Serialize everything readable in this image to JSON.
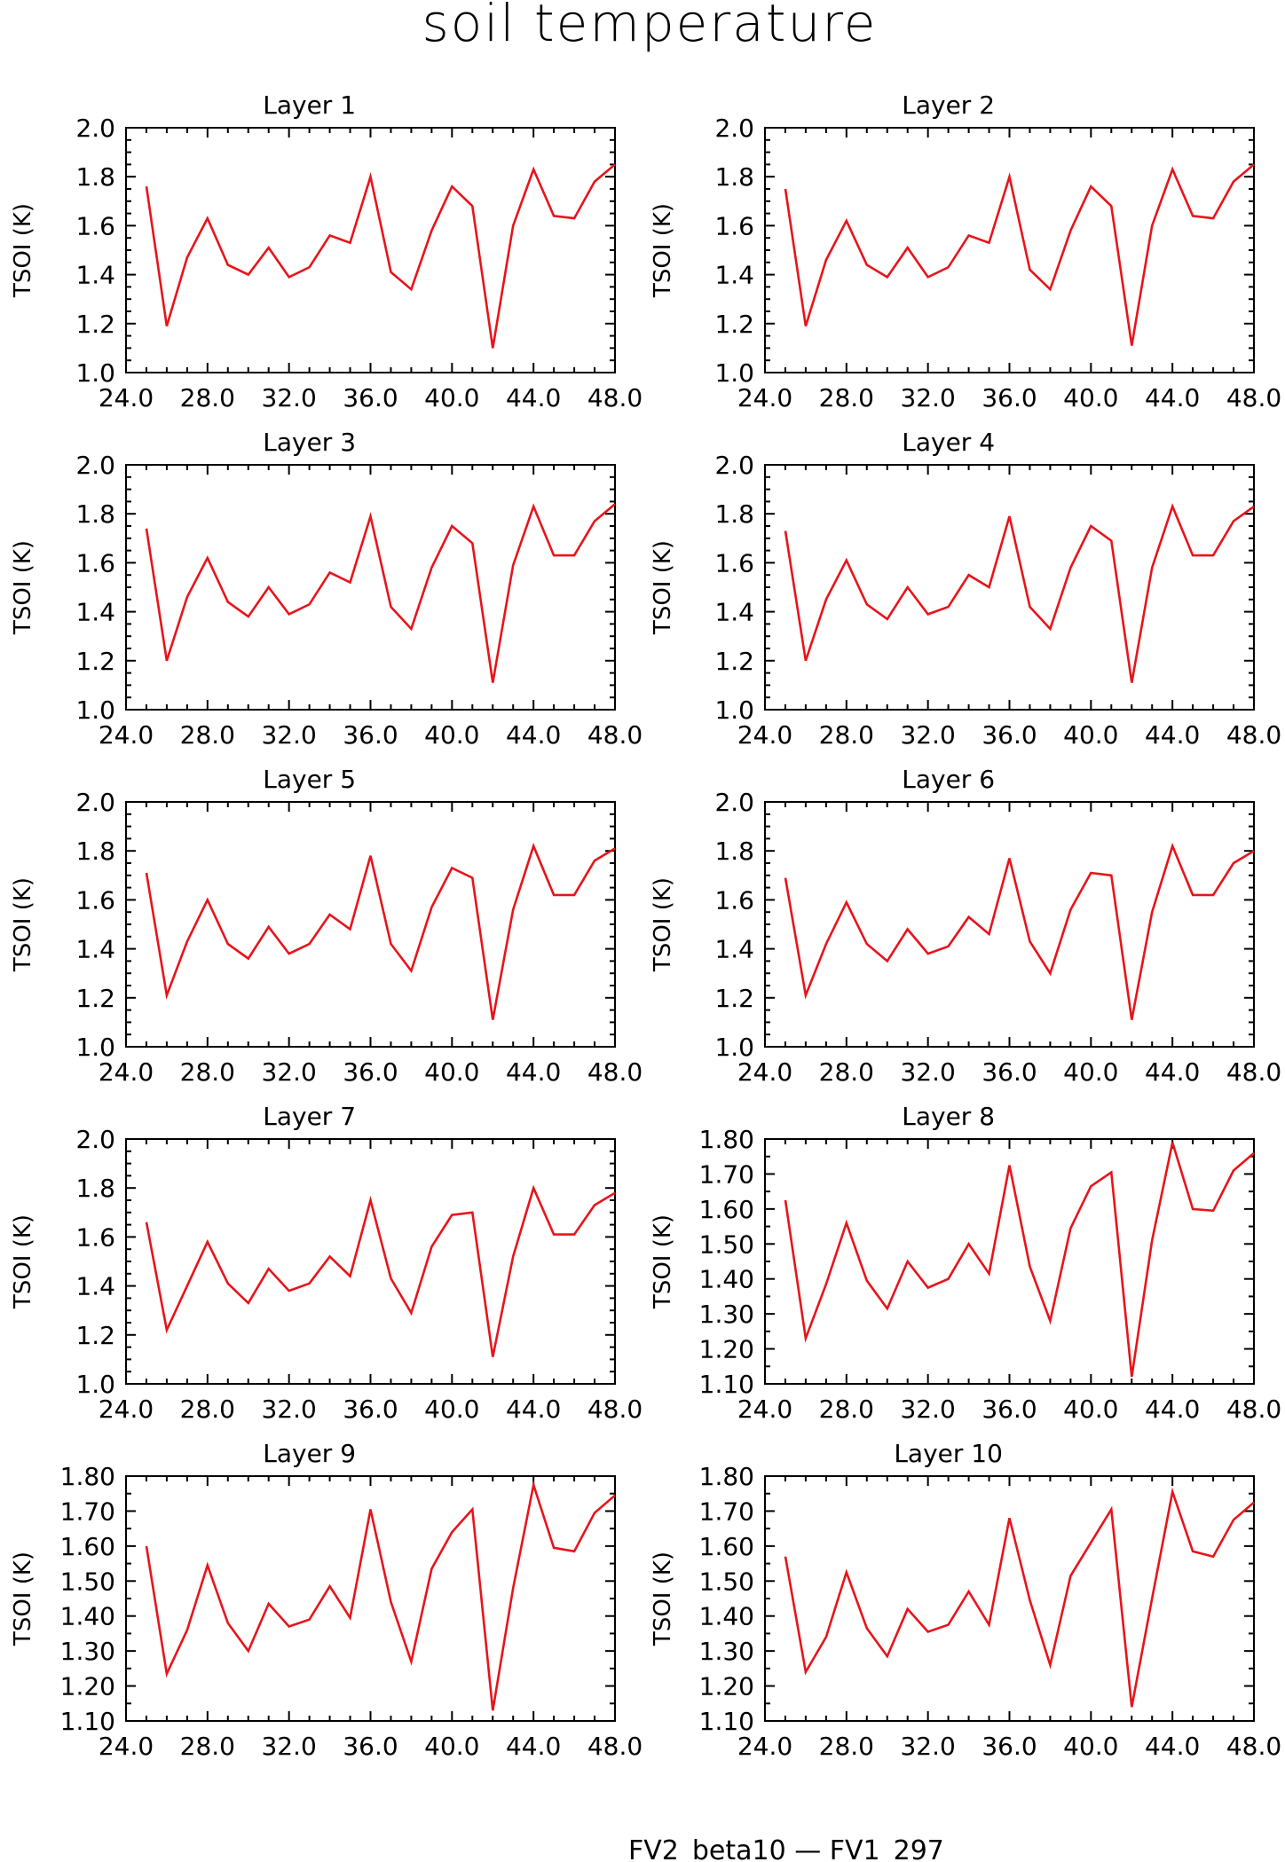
{
  "title": "soil temperature",
  "footer": "FV2_beta10 — FV1_297",
  "chart_data": [
    {
      "type": "line",
      "title": "Layer 1",
      "ylabel": "TSOI  (K)",
      "xlim": [
        24,
        48
      ],
      "ylim": [
        1.0,
        2.0
      ],
      "x_ticks": [
        "24.0",
        "28.0",
        "32.0",
        "36.0",
        "40.0",
        "44.0",
        "48.0"
      ],
      "y_ticks": [
        "1.0",
        "1.2",
        "1.4",
        "1.6",
        "1.8",
        "2.0"
      ],
      "x": [
        25,
        26,
        27,
        28,
        29,
        30,
        31,
        32,
        33,
        34,
        35,
        36,
        37,
        38,
        39,
        40,
        41,
        42,
        43,
        44,
        45,
        46,
        47,
        48
      ],
      "series": [
        {
          "color": "#e8141b",
          "values": [
            1.76,
            1.19,
            1.47,
            1.63,
            1.44,
            1.4,
            1.51,
            1.39,
            1.43,
            1.56,
            1.53,
            1.8,
            1.41,
            1.34,
            1.58,
            1.76,
            1.68,
            1.1,
            1.6,
            1.83,
            1.64,
            1.63,
            1.78,
            1.85
          ]
        }
      ]
    },
    {
      "type": "line",
      "title": "Layer 2",
      "ylabel": "TSOI  (K)",
      "xlim": [
        24,
        48
      ],
      "ylim": [
        1.0,
        2.0
      ],
      "x_ticks": [
        "24.0",
        "28.0",
        "32.0",
        "36.0",
        "40.0",
        "44.0",
        "48.0"
      ],
      "y_ticks": [
        "1.0",
        "1.2",
        "1.4",
        "1.6",
        "1.8",
        "2.0"
      ],
      "x": [
        25,
        26,
        27,
        28,
        29,
        30,
        31,
        32,
        33,
        34,
        35,
        36,
        37,
        38,
        39,
        40,
        41,
        42,
        43,
        44,
        45,
        46,
        47,
        48
      ],
      "series": [
        {
          "color": "#e8141b",
          "values": [
            1.75,
            1.19,
            1.46,
            1.62,
            1.44,
            1.39,
            1.51,
            1.39,
            1.43,
            1.56,
            1.53,
            1.8,
            1.42,
            1.34,
            1.58,
            1.76,
            1.68,
            1.11,
            1.6,
            1.83,
            1.64,
            1.63,
            1.78,
            1.85
          ]
        }
      ]
    },
    {
      "type": "line",
      "title": "Layer 3",
      "ylabel": "TSOI  (K)",
      "xlim": [
        24,
        48
      ],
      "ylim": [
        1.0,
        2.0
      ],
      "x_ticks": [
        "24.0",
        "28.0",
        "32.0",
        "36.0",
        "40.0",
        "44.0",
        "48.0"
      ],
      "y_ticks": [
        "1.0",
        "1.2",
        "1.4",
        "1.6",
        "1.8",
        "2.0"
      ],
      "x": [
        25,
        26,
        27,
        28,
        29,
        30,
        31,
        32,
        33,
        34,
        35,
        36,
        37,
        38,
        39,
        40,
        41,
        42,
        43,
        44,
        45,
        46,
        47,
        48
      ],
      "series": [
        {
          "color": "#e8141b",
          "values": [
            1.74,
            1.2,
            1.46,
            1.62,
            1.44,
            1.38,
            1.5,
            1.39,
            1.43,
            1.56,
            1.52,
            1.79,
            1.42,
            1.33,
            1.58,
            1.75,
            1.68,
            1.11,
            1.59,
            1.83,
            1.63,
            1.63,
            1.77,
            1.84
          ]
        }
      ]
    },
    {
      "type": "line",
      "title": "Layer 4",
      "ylabel": "TSOI  (K)",
      "xlim": [
        24,
        48
      ],
      "ylim": [
        1.0,
        2.0
      ],
      "x_ticks": [
        "24.0",
        "28.0",
        "32.0",
        "36.0",
        "40.0",
        "44.0",
        "48.0"
      ],
      "y_ticks": [
        "1.0",
        "1.2",
        "1.4",
        "1.6",
        "1.8",
        "2.0"
      ],
      "x": [
        25,
        26,
        27,
        28,
        29,
        30,
        31,
        32,
        33,
        34,
        35,
        36,
        37,
        38,
        39,
        40,
        41,
        42,
        43,
        44,
        45,
        46,
        47,
        48
      ],
      "series": [
        {
          "color": "#e8141b",
          "values": [
            1.73,
            1.2,
            1.45,
            1.61,
            1.43,
            1.37,
            1.5,
            1.39,
            1.42,
            1.55,
            1.5,
            1.79,
            1.42,
            1.33,
            1.58,
            1.75,
            1.69,
            1.11,
            1.58,
            1.83,
            1.63,
            1.63,
            1.77,
            1.83
          ]
        }
      ]
    },
    {
      "type": "line",
      "title": "Layer 5",
      "ylabel": "TSOI  (K)",
      "xlim": [
        24,
        48
      ],
      "ylim": [
        1.0,
        2.0
      ],
      "x_ticks": [
        "24.0",
        "28.0",
        "32.0",
        "36.0",
        "40.0",
        "44.0",
        "48.0"
      ],
      "y_ticks": [
        "1.0",
        "1.2",
        "1.4",
        "1.6",
        "1.8",
        "2.0"
      ],
      "x": [
        25,
        26,
        27,
        28,
        29,
        30,
        31,
        32,
        33,
        34,
        35,
        36,
        37,
        38,
        39,
        40,
        41,
        42,
        43,
        44,
        45,
        46,
        47,
        48
      ],
      "series": [
        {
          "color": "#e8141b",
          "values": [
            1.71,
            1.21,
            1.43,
            1.6,
            1.42,
            1.36,
            1.49,
            1.38,
            1.42,
            1.54,
            1.48,
            1.78,
            1.42,
            1.31,
            1.57,
            1.73,
            1.69,
            1.11,
            1.56,
            1.82,
            1.62,
            1.62,
            1.76,
            1.81
          ]
        }
      ]
    },
    {
      "type": "line",
      "title": "Layer 6",
      "ylabel": "TSOI  (K)",
      "xlim": [
        24,
        48
      ],
      "ylim": [
        1.0,
        2.0
      ],
      "x_ticks": [
        "24.0",
        "28.0",
        "32.0",
        "36.0",
        "40.0",
        "44.0",
        "48.0"
      ],
      "y_ticks": [
        "1.0",
        "1.2",
        "1.4",
        "1.6",
        "1.8",
        "2.0"
      ],
      "x": [
        25,
        26,
        27,
        28,
        29,
        30,
        31,
        32,
        33,
        34,
        35,
        36,
        37,
        38,
        39,
        40,
        41,
        42,
        43,
        44,
        45,
        46,
        47,
        48
      ],
      "series": [
        {
          "color": "#e8141b",
          "values": [
            1.69,
            1.21,
            1.42,
            1.59,
            1.42,
            1.35,
            1.48,
            1.38,
            1.41,
            1.53,
            1.46,
            1.77,
            1.43,
            1.3,
            1.56,
            1.71,
            1.7,
            1.11,
            1.55,
            1.82,
            1.62,
            1.62,
            1.75,
            1.8
          ]
        }
      ]
    },
    {
      "type": "line",
      "title": "Layer 7",
      "ylabel": "TSOI  (K)",
      "xlim": [
        24,
        48
      ],
      "ylim": [
        1.0,
        2.0
      ],
      "x_ticks": [
        "24.0",
        "28.0",
        "32.0",
        "36.0",
        "40.0",
        "44.0",
        "48.0"
      ],
      "y_ticks": [
        "1.0",
        "1.2",
        "1.4",
        "1.6",
        "1.8",
        "2.0"
      ],
      "x": [
        25,
        26,
        27,
        28,
        29,
        30,
        31,
        32,
        33,
        34,
        35,
        36,
        37,
        38,
        39,
        40,
        41,
        42,
        43,
        44,
        45,
        46,
        47,
        48
      ],
      "series": [
        {
          "color": "#e8141b",
          "values": [
            1.66,
            1.22,
            1.4,
            1.58,
            1.41,
            1.33,
            1.47,
            1.38,
            1.41,
            1.52,
            1.44,
            1.75,
            1.43,
            1.29,
            1.56,
            1.69,
            1.7,
            1.11,
            1.52,
            1.8,
            1.61,
            1.61,
            1.73,
            1.78
          ]
        }
      ]
    },
    {
      "type": "line",
      "title": "Layer 8",
      "ylabel": "TSOI  (K)",
      "xlim": [
        24,
        48
      ],
      "ylim": [
        1.1,
        1.8
      ],
      "x_ticks": [
        "24.0",
        "28.0",
        "32.0",
        "36.0",
        "40.0",
        "44.0",
        "48.0"
      ],
      "y_ticks": [
        "1.10",
        "1.20",
        "1.30",
        "1.40",
        "1.50",
        "1.60",
        "1.70",
        "1.80"
      ],
      "x": [
        25,
        26,
        27,
        28,
        29,
        30,
        31,
        32,
        33,
        34,
        35,
        36,
        37,
        38,
        39,
        40,
        41,
        42,
        43,
        44,
        45,
        46,
        47,
        48
      ],
      "series": [
        {
          "color": "#e8141b",
          "values": [
            1.625,
            1.23,
            1.385,
            1.56,
            1.395,
            1.315,
            1.45,
            1.375,
            1.4,
            1.5,
            1.415,
            1.725,
            1.435,
            1.28,
            1.545,
            1.665,
            1.705,
            1.12,
            1.51,
            1.79,
            1.6,
            1.595,
            1.71,
            1.76
          ]
        }
      ]
    },
    {
      "type": "line",
      "title": "Layer 9",
      "ylabel": "TSOI  (K)",
      "xlim": [
        24,
        48
      ],
      "ylim": [
        1.1,
        1.8
      ],
      "x_ticks": [
        "24.0",
        "28.0",
        "32.0",
        "36.0",
        "40.0",
        "44.0",
        "48.0"
      ],
      "y_ticks": [
        "1.10",
        "1.20",
        "1.30",
        "1.40",
        "1.50",
        "1.60",
        "1.70",
        "1.80"
      ],
      "x": [
        25,
        26,
        27,
        28,
        29,
        30,
        31,
        32,
        33,
        34,
        35,
        36,
        37,
        38,
        39,
        40,
        41,
        42,
        43,
        44,
        45,
        46,
        47,
        48
      ],
      "series": [
        {
          "color": "#e8141b",
          "values": [
            1.6,
            1.235,
            1.36,
            1.545,
            1.38,
            1.3,
            1.435,
            1.37,
            1.39,
            1.485,
            1.395,
            1.705,
            1.44,
            1.27,
            1.535,
            1.64,
            1.705,
            1.13,
            1.48,
            1.775,
            1.595,
            1.585,
            1.695,
            1.745
          ]
        }
      ]
    },
    {
      "type": "line",
      "title": "Layer 10",
      "ylabel": "TSOI  (K)",
      "xlim": [
        24,
        48
      ],
      "ylim": [
        1.1,
        1.8
      ],
      "x_ticks": [
        "24.0",
        "28.0",
        "32.0",
        "36.0",
        "40.0",
        "44.0",
        "48.0"
      ],
      "y_ticks": [
        "1.10",
        "1.20",
        "1.30",
        "1.40",
        "1.50",
        "1.60",
        "1.70",
        "1.80"
      ],
      "x": [
        25,
        26,
        27,
        28,
        29,
        30,
        31,
        32,
        33,
        34,
        35,
        36,
        37,
        38,
        39,
        40,
        41,
        42,
        43,
        44,
        45,
        46,
        47,
        48
      ],
      "series": [
        {
          "color": "#e8141b",
          "values": [
            1.57,
            1.24,
            1.34,
            1.525,
            1.365,
            1.285,
            1.42,
            1.355,
            1.375,
            1.47,
            1.375,
            1.68,
            1.445,
            1.26,
            1.515,
            1.61,
            1.705,
            1.14,
            1.45,
            1.755,
            1.585,
            1.57,
            1.675,
            1.725
          ]
        }
      ]
    }
  ]
}
